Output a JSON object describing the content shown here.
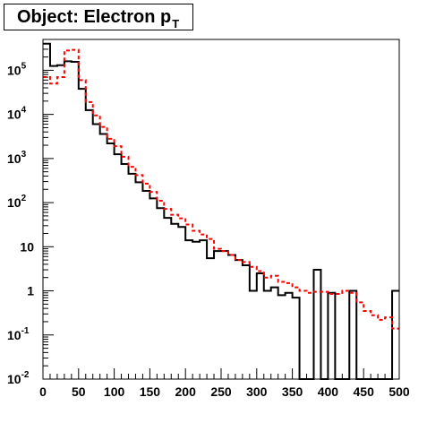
{
  "title": {
    "main": "Object: Electron p",
    "subscript": "T"
  },
  "chart_data": {
    "type": "line",
    "title": "Object: Electron p_T",
    "xlabel": "",
    "ylabel": "",
    "xlim": [
      0,
      500
    ],
    "ylim": [
      0.01,
      500000
    ],
    "yscale": "log",
    "x_ticks": [
      0,
      50,
      100,
      150,
      200,
      250,
      300,
      350,
      400,
      450,
      500
    ],
    "x_tick_labels": [
      "0",
      "50",
      "100",
      "150",
      "200",
      "250",
      "300",
      "350",
      "400",
      "450",
      "500"
    ],
    "y_ticks": [
      0.01,
      0.1,
      1,
      10,
      100,
      1000,
      10000,
      100000
    ],
    "y_tick_labels": [
      {
        "base": "10",
        "exp": "-2"
      },
      {
        "base": "10",
        "exp": "-1"
      },
      {
        "base": "1",
        "exp": ""
      },
      {
        "base": "10",
        "exp": ""
      },
      {
        "base": "10",
        "exp": "2"
      },
      {
        "base": "10",
        "exp": "3"
      },
      {
        "base": "10",
        "exp": "4"
      },
      {
        "base": "10",
        "exp": "5"
      }
    ],
    "bin_width": 10,
    "grid": false,
    "series": [
      {
        "style": "solid",
        "color": "#000000",
        "values": [
          400000,
          125000,
          130000,
          160000,
          155000,
          38000,
          12500,
          6000,
          3600,
          2200,
          1250,
          750,
          450,
          290,
          185,
          125,
          75,
          45,
          33,
          28,
          14,
          13,
          14,
          5.5,
          8,
          8,
          6.5,
          5,
          3.8,
          1,
          2.5,
          1,
          1.2,
          0.8,
          0.9,
          0.7,
          0.01,
          0.01,
          3,
          0.01,
          0.9,
          0.01,
          0.01,
          1,
          0.01,
          0.01,
          0.01,
          0.01,
          0.01,
          1
        ]
      },
      {
        "style": "dashed",
        "color": "#ff0000",
        "values": [
          70000,
          50000,
          70000,
          280000,
          290000,
          60000,
          19000,
          9500,
          5200,
          2800,
          1900,
          1100,
          650,
          420,
          270,
          175,
          110,
          72,
          53,
          44,
          32,
          23,
          19,
          15,
          9,
          8,
          6.5,
          5,
          4.5,
          3.5,
          2.8,
          2,
          2.2,
          1.6,
          1.5,
          1.2,
          1,
          0.9,
          0.95,
          0.95,
          0.85,
          0.85,
          1,
          0.9,
          0.55,
          0.35,
          0.28,
          0.22,
          0.25,
          0.14
        ]
      }
    ]
  }
}
